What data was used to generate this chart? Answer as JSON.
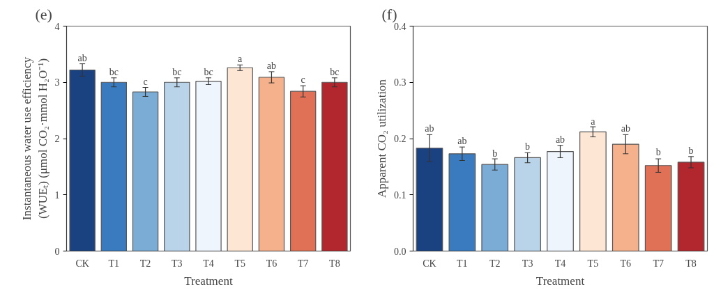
{
  "chart_data": [
    {
      "type": "bar",
      "title": "(e)",
      "xlabel": "Treatment",
      "ylabel": "Instantaneous water use efficiency\n(WUEₜ) (μmol CO₂·mmol H₂O⁻¹)",
      "categories": [
        "CK",
        "T1",
        "T2",
        "T3",
        "T4",
        "T5",
        "T6",
        "T7",
        "T8"
      ],
      "values": [
        3.22,
        3.0,
        2.83,
        3.0,
        3.02,
        3.26,
        3.09,
        2.84,
        3.0
      ],
      "errors": [
        0.11,
        0.08,
        0.08,
        0.08,
        0.06,
        0.05,
        0.1,
        0.1,
        0.08
      ],
      "colors": [
        "#1a4180",
        "#3a7bbf",
        "#7bacd6",
        "#b9d3e8",
        "#eef5fc",
        "#fde6d4",
        "#f5b08c",
        "#e07156",
        "#b2262e"
      ],
      "ylim": [
        0,
        4
      ],
      "yticks": [
        0,
        1,
        2,
        3,
        4
      ],
      "grid": false,
      "annotations": [
        {
          "text": "ab",
          "x": "CK",
          "y": 3.33
        },
        {
          "text": "bc",
          "x": "T1",
          "y": 3.08
        },
        {
          "text": "c",
          "x": "T2",
          "y": 2.91
        },
        {
          "text": "bc",
          "x": "T3",
          "y": 3.08
        },
        {
          "text": "bc",
          "x": "T4",
          "y": 3.08
        },
        {
          "text": "a",
          "x": "T5",
          "y": 3.31
        },
        {
          "text": "ab",
          "x": "T6",
          "y": 3.19
        },
        {
          "text": "c",
          "x": "T7",
          "y": 2.94
        },
        {
          "text": "bc",
          "x": "T8",
          "y": 3.08
        }
      ]
    },
    {
      "type": "bar",
      "title": "(f)",
      "xlabel": "Treatment",
      "ylabel": "Apparent CO₂ utilization",
      "categories": [
        "CK",
        "T1",
        "T2",
        "T3",
        "T4",
        "T5",
        "T6",
        "T7",
        "T8"
      ],
      "values": [
        0.183,
        0.173,
        0.154,
        0.166,
        0.177,
        0.212,
        0.19,
        0.152,
        0.158
      ],
      "errors": [
        0.024,
        0.012,
        0.01,
        0.009,
        0.011,
        0.009,
        0.017,
        0.012,
        0.01
      ],
      "colors": [
        "#1a4180",
        "#3a7bbf",
        "#7bacd6",
        "#b9d3e8",
        "#eef5fc",
        "#fde6d4",
        "#f5b08c",
        "#e07156",
        "#b2262e"
      ],
      "ylim": [
        0,
        0.4
      ],
      "yticks": [
        {
          "value": 0,
          "label": "0.0"
        },
        0.1,
        0.2,
        0.3,
        0.4
      ],
      "grid": false,
      "annotations": [
        {
          "text": "ab",
          "x": "CK",
          "y": 0.207
        },
        {
          "text": "ab",
          "x": "T1",
          "y": 0.185
        },
        {
          "text": "b",
          "x": "T2",
          "y": 0.163
        },
        {
          "text": "b",
          "x": "T3",
          "y": 0.175
        },
        {
          "text": "ab",
          "x": "T4",
          "y": 0.188
        },
        {
          "text": "a",
          "x": "T5",
          "y": 0.22
        },
        {
          "text": "ab",
          "x": "T6",
          "y": 0.207
        },
        {
          "text": "b",
          "x": "T7",
          "y": 0.165
        },
        {
          "text": "b",
          "x": "T8",
          "y": 0.168
        }
      ]
    }
  ]
}
